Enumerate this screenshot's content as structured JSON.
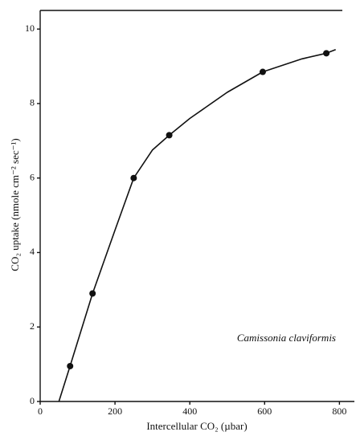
{
  "chart_data": {
    "type": "scatter",
    "xlabel": "Intercellular CO₂ (µbar)",
    "ylabel": "CO₂ uptake (nmole cm⁻² sec⁻¹)",
    "annotation": "Camissonia claviformis",
    "xlim": [
      0,
      840
    ],
    "xticks": [
      0,
      200,
      400,
      600,
      800
    ],
    "ylim": [
      0,
      10.5
    ],
    "yticks": [
      0,
      2,
      4,
      6,
      8,
      10
    ],
    "color": "#111111",
    "series": [
      {
        "x": [
          80,
          140,
          250,
          345,
          595,
          765
        ],
        "values": [
          0.95,
          2.9,
          6.0,
          7.15,
          8.85,
          9.35
        ]
      }
    ],
    "fit": {
      "x": [
        50,
        80,
        140,
        200,
        250,
        300,
        345,
        400,
        500,
        595,
        700,
        765,
        790
      ],
      "values": [
        0,
        0.95,
        2.9,
        4.6,
        6.0,
        6.75,
        7.15,
        7.6,
        8.3,
        8.85,
        9.2,
        9.35,
        9.45
      ]
    }
  }
}
